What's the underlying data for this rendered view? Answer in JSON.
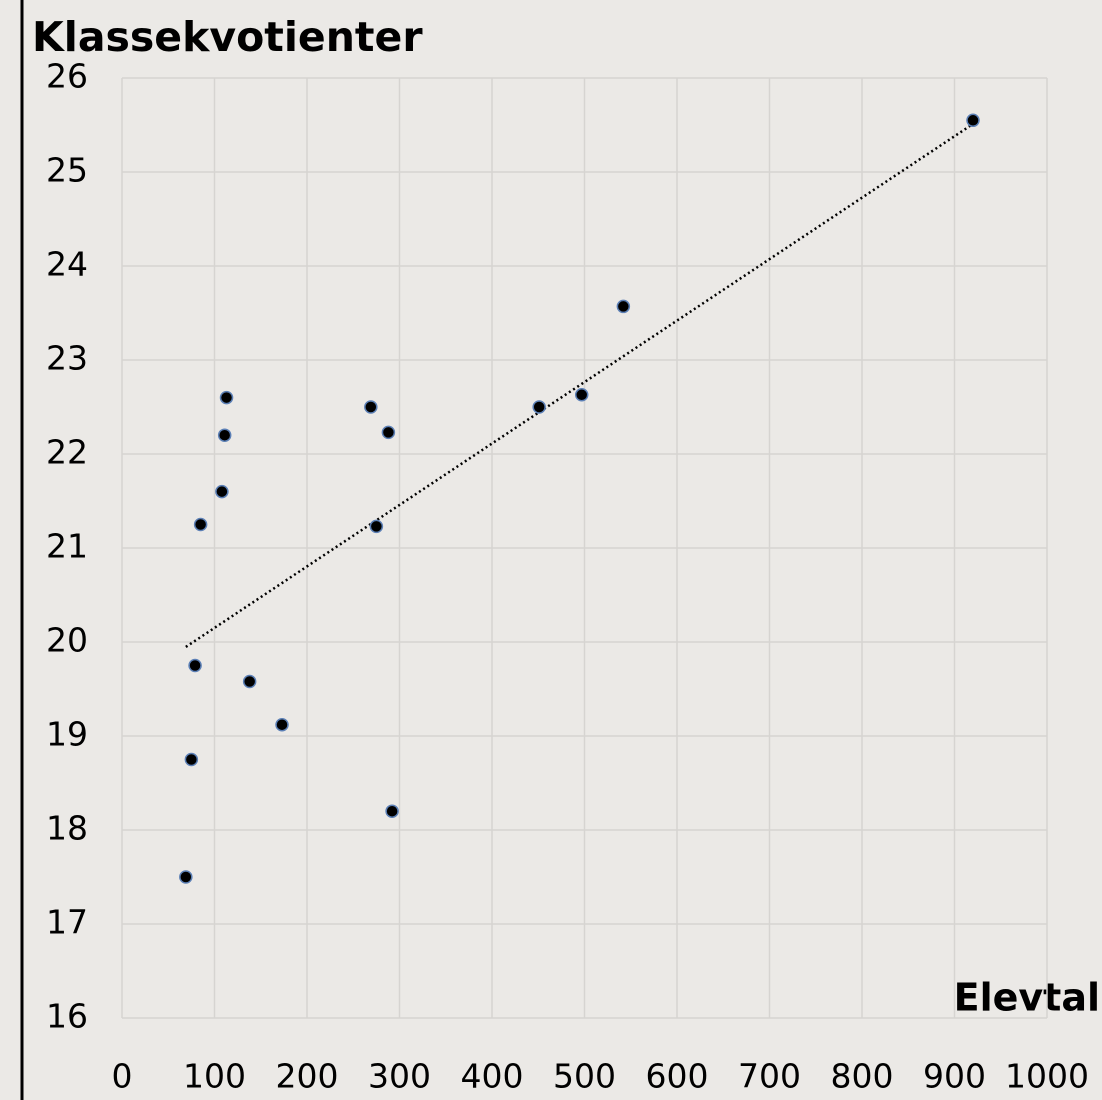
{
  "chart_data": {
    "type": "scatter",
    "title": "Klassekvotienter",
    "x_label": "Elevtal",
    "x": [
      920,
      542,
      497,
      451,
      269,
      288,
      275,
      113,
      111,
      108,
      85,
      79,
      138,
      173,
      75,
      292,
      69
    ],
    "values": [
      25.55,
      23.57,
      22.63,
      22.5,
      22.5,
      22.23,
      21.23,
      22.6,
      22.2,
      21.6,
      21.25,
      19.75,
      19.58,
      19.12,
      18.75,
      18.2,
      17.5
    ],
    "color": "#000000",
    "xlim": [
      0,
      1000
    ],
    "xticks": [
      0,
      100,
      200,
      300,
      400,
      500,
      600,
      700,
      800,
      900,
      1000
    ],
    "ylim": [
      16,
      26
    ],
    "yticks": [
      16,
      17,
      18,
      19,
      20,
      21,
      22,
      23,
      24,
      25,
      26
    ],
    "grid": true,
    "trendline": true
  }
}
